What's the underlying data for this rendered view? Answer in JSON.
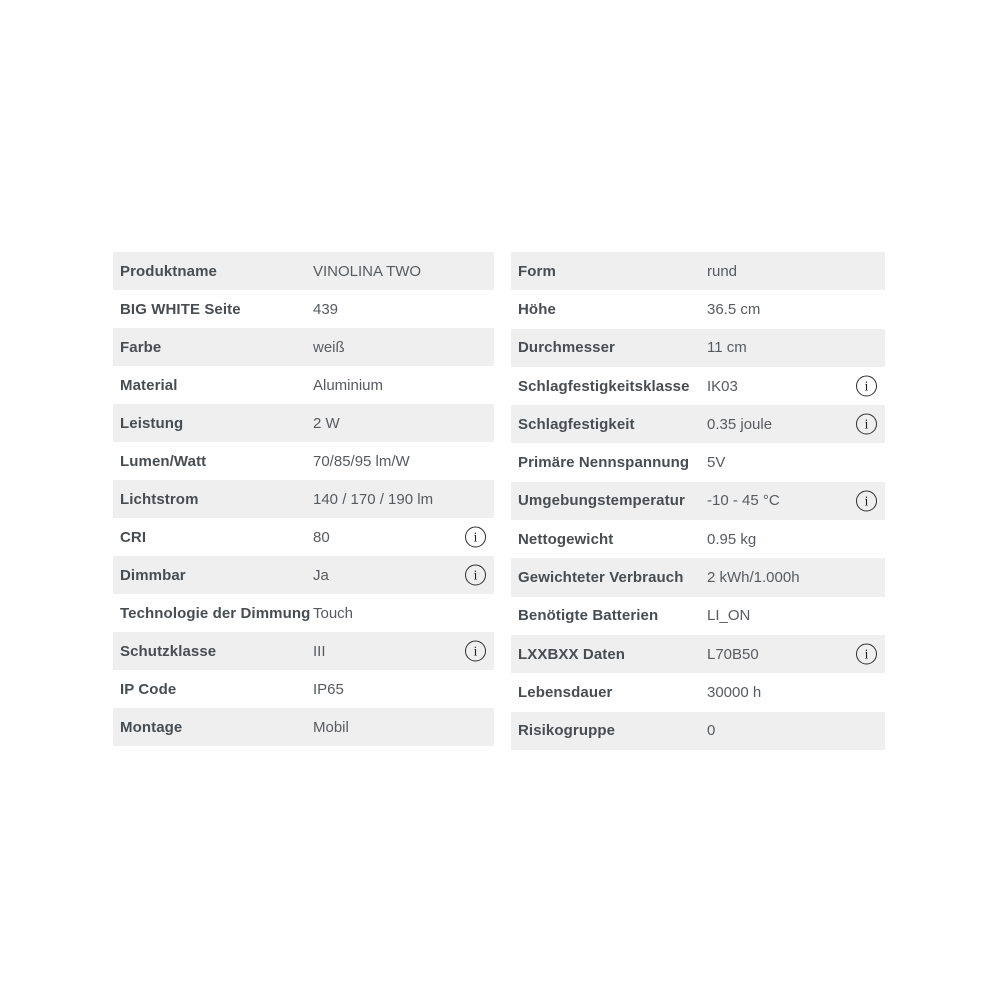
{
  "colors": {
    "page_background": "#ffffff",
    "row_stripe": "#efefef",
    "label_text": "#484d51",
    "value_text": "#575b5f",
    "info_icon": "#2e2e2e"
  },
  "info_icon_glyph": "i",
  "tables": [
    {
      "id": "left",
      "rows": [
        {
          "label": "Produktname",
          "value": "VINOLINA TWO",
          "info": false
        },
        {
          "label": "BIG WHITE Seite",
          "value": "439",
          "info": false
        },
        {
          "label": "Farbe",
          "value": "weiß",
          "info": false
        },
        {
          "label": "Material",
          "value": "Aluminium",
          "info": false
        },
        {
          "label": "Leistung",
          "value": "2 W",
          "info": false
        },
        {
          "label": "Lumen/Watt",
          "value": "70/85/95 lm/W",
          "info": false
        },
        {
          "label": "Lichtstrom",
          "value": "140 / 170 / 190 lm",
          "info": false
        },
        {
          "label": "CRI",
          "value": "80",
          "info": true
        },
        {
          "label": "Dimmbar",
          "value": "Ja",
          "info": true
        },
        {
          "label": "Technologie der Dimmung",
          "value": "Touch",
          "info": false
        },
        {
          "label": "Schutzklasse",
          "value": "III",
          "info": true
        },
        {
          "label": "IP Code",
          "value": "IP65",
          "info": false
        },
        {
          "label": "Montage",
          "value": "Mobil",
          "info": false
        }
      ]
    },
    {
      "id": "right",
      "rows": [
        {
          "label": "Form",
          "value": "rund",
          "info": false
        },
        {
          "label": "Höhe",
          "value": "36.5 cm",
          "info": false
        },
        {
          "label": "Durchmesser",
          "value": "11 cm",
          "info": false
        },
        {
          "label": "Schlagfestigkeitsklasse",
          "value": "IK03",
          "info": true
        },
        {
          "label": "Schlagfestigkeit",
          "value": "0.35 joule",
          "info": true
        },
        {
          "label": "Primäre Nennspannung",
          "value": "5V",
          "info": false
        },
        {
          "label": "Umgebungstemperatur",
          "value": "-10 - 45 °C",
          "info": true
        },
        {
          "label": "Nettogewicht",
          "value": "0.95 kg",
          "info": false
        },
        {
          "label": "Gewichteter Verbrauch",
          "value": "2 kWh/1.000h",
          "info": false
        },
        {
          "label": "Benötigte Batterien",
          "value": "LI_ON",
          "info": false
        },
        {
          "label": "LXXBXX Daten",
          "value": "L70B50",
          "info": true
        },
        {
          "label": "Lebensdauer",
          "value": "30000 h",
          "info": false
        },
        {
          "label": "Risikogruppe",
          "value": "0",
          "info": false
        }
      ]
    }
  ]
}
